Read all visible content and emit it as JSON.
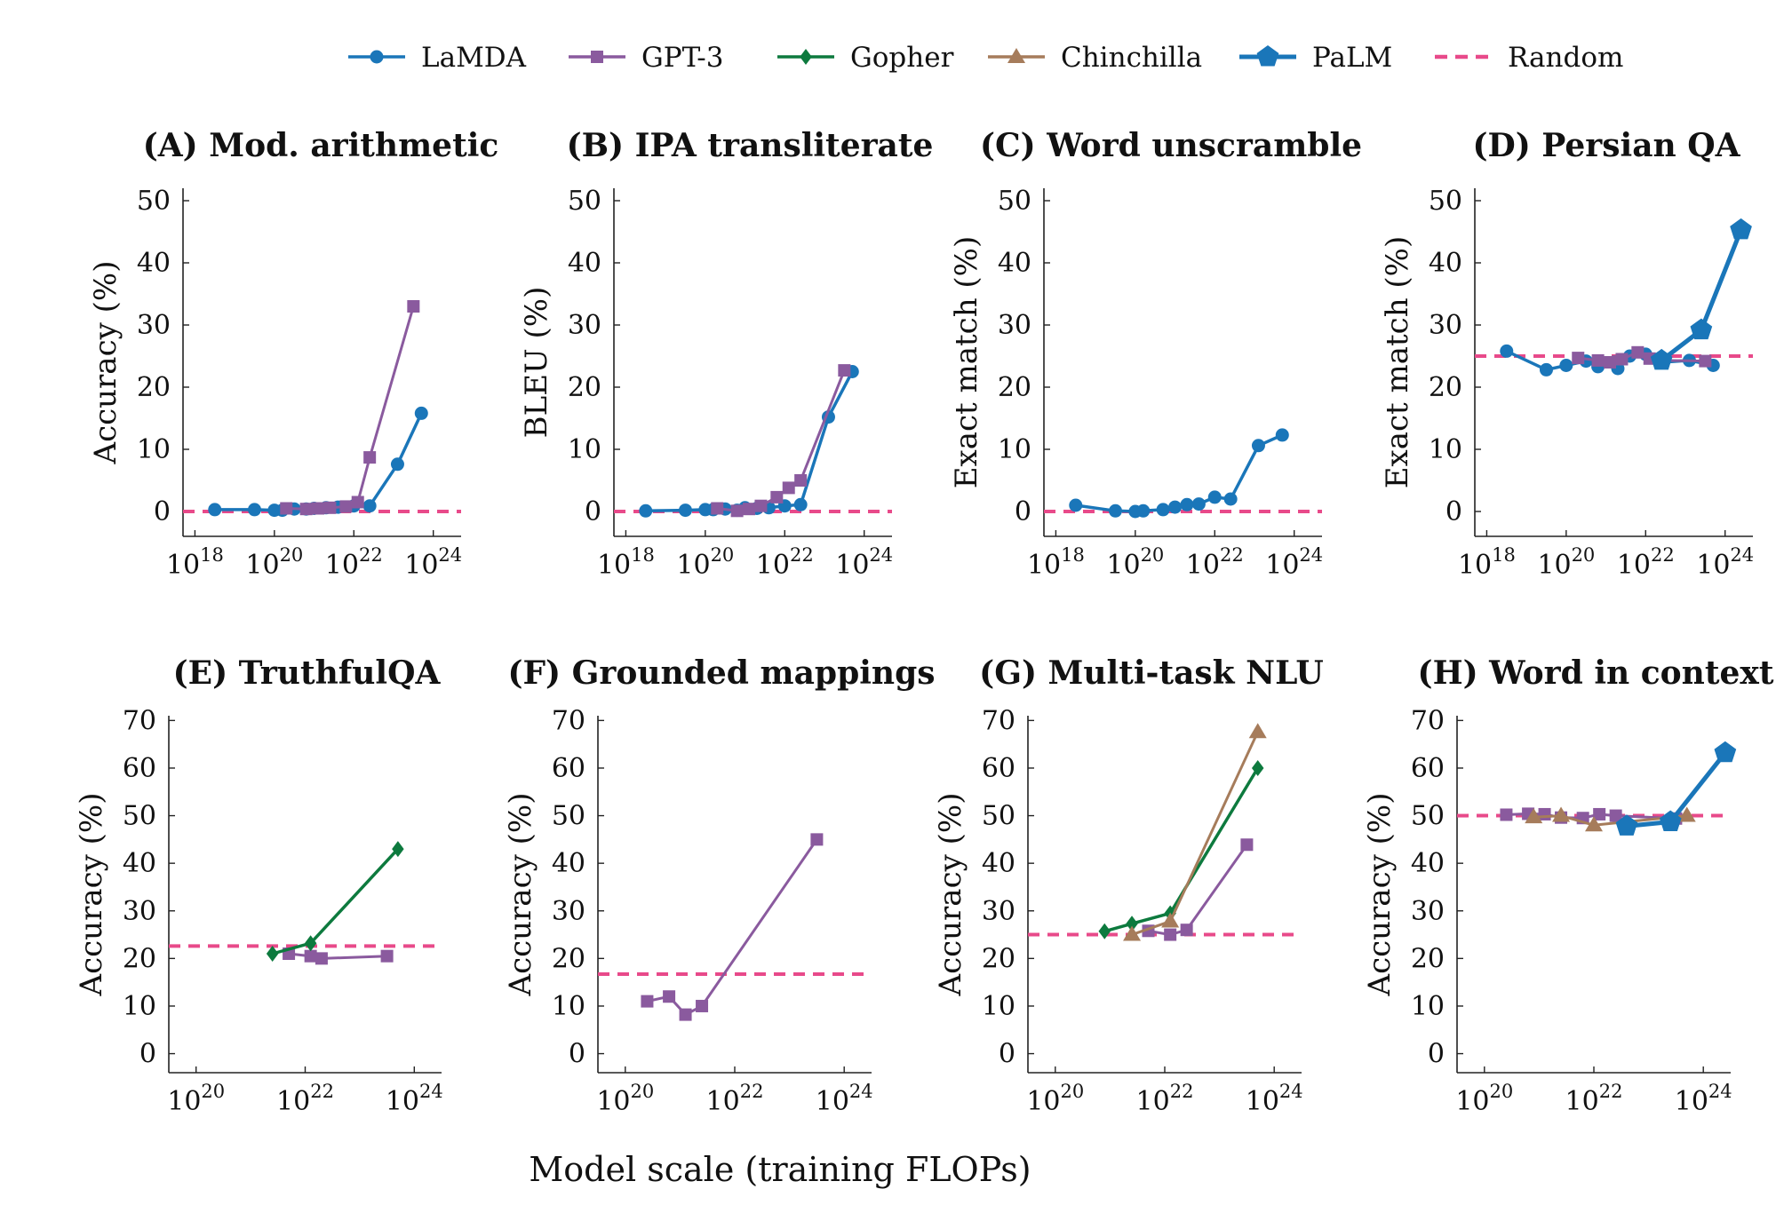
{
  "xlabel": "Model scale (training FLOPs)",
  "series_styles": [
    {
      "name": "LaMDA",
      "color": "#1a76b9",
      "marker": "circle"
    },
    {
      "name": "GPT-3",
      "color": "#8a5a9e",
      "marker": "square"
    },
    {
      "name": "Gopher",
      "color": "#0d7a3e",
      "marker": "diamond"
    },
    {
      "name": "Chinchilla",
      "color": "#a67c5b",
      "marker": "triangle"
    },
    {
      "name": "PaLM",
      "color": "#1a76b9",
      "marker": "pentagon"
    },
    {
      "name": "Random",
      "color": "#e84a8a",
      "marker": "dashed"
    }
  ],
  "chart_data": [
    {
      "type": "line",
      "title": "(A) Mod. arithmetic",
      "ylabel": "Accuracy (%)",
      "x_scale": "log",
      "xlim": [
        "1e17.7",
        "1e24.7"
      ],
      "x_ticks": [
        "1e18",
        "1e20",
        "1e22",
        "1e24"
      ],
      "ylim": [
        -4,
        52
      ],
      "y_ticks": [
        0,
        10,
        20,
        30,
        40,
        50
      ],
      "random": 0,
      "series": [
        {
          "name": "LaMDA",
          "x": [
            "1e18.5",
            "1e19.5",
            "1e20",
            "1e20.2",
            "1e20.5",
            "1e20.8",
            "1e21",
            "1e21.3",
            "1e21.6",
            "1e22",
            "1e22.4",
            "1e23.1",
            "1e23.7"
          ],
          "y": [
            0.3,
            0.3,
            0.2,
            0.2,
            0.4,
            0.4,
            0.5,
            0.6,
            0.7,
            0.9,
            0.9,
            7.6,
            15.8
          ]
        },
        {
          "name": "GPT-3",
          "x": [
            "1e20.3",
            "1e20.8",
            "1e21.1",
            "1e21.4",
            "1e21.8",
            "1e22.1",
            "1e22.4",
            "1e23.5"
          ],
          "y": [
            0.5,
            0.4,
            0.5,
            0.6,
            0.8,
            1.5,
            8.7,
            33
          ]
        }
      ]
    },
    {
      "type": "line",
      "title": "(B) IPA transliterate",
      "ylabel": "BLEU (%)",
      "x_scale": "log",
      "xlim": [
        "1e17.7",
        "1e24.7"
      ],
      "x_ticks": [
        "1e18",
        "1e20",
        "1e22",
        "1e24"
      ],
      "ylim": [
        -4,
        52
      ],
      "y_ticks": [
        0,
        10,
        20,
        30,
        40,
        50
      ],
      "random": 0,
      "series": [
        {
          "name": "LaMDA",
          "x": [
            "1e18.5",
            "1e19.5",
            "1e20",
            "1e20.2",
            "1e20.5",
            "1e20.8",
            "1e21",
            "1e21.3",
            "1e21.6",
            "1e22",
            "1e22.4",
            "1e23.1",
            "1e23.7"
          ],
          "y": [
            0.1,
            0.2,
            0.3,
            0.3,
            0.4,
            0.2,
            0.6,
            0.5,
            0.6,
            0.9,
            1.1,
            15.2,
            22.5
          ]
        },
        {
          "name": "GPT-3",
          "x": [
            "1e20.3",
            "1e20.8",
            "1e21.1",
            "1e21.4",
            "1e21.8",
            "1e22.1",
            "1e22.4",
            "1e23.5"
          ],
          "y": [
            0.5,
            0.1,
            0.4,
            0.9,
            2.3,
            3.8,
            5.0,
            22.7
          ]
        }
      ]
    },
    {
      "type": "line",
      "title": "(C) Word unscramble",
      "ylabel": "Exact match (%)",
      "x_scale": "log",
      "xlim": [
        "1e17.7",
        "1e24.7"
      ],
      "x_ticks": [
        "1e18",
        "1e20",
        "1e22",
        "1e24"
      ],
      "ylim": [
        -4,
        52
      ],
      "y_ticks": [
        0,
        10,
        20,
        30,
        40,
        50
      ],
      "random": 0,
      "series": [
        {
          "name": "LaMDA",
          "x": [
            "1e18.5",
            "1e19.5",
            "1e20",
            "1e20.2",
            "1e20.7",
            "1e21",
            "1e21.3",
            "1e21.6",
            "1e22",
            "1e22.4",
            "1e23.1",
            "1e23.7"
          ],
          "y": [
            1.0,
            0.1,
            0.0,
            0.1,
            0.3,
            0.7,
            1.1,
            1.2,
            2.3,
            2.0,
            10.6,
            12.3
          ]
        }
      ]
    },
    {
      "type": "line",
      "title": "(D) Persian QA",
      "ylabel": "Exact match (%)",
      "x_scale": "log",
      "xlim": [
        "1e17.7",
        "1e24.7"
      ],
      "x_ticks": [
        "1e18",
        "1e20",
        "1e22",
        "1e24"
      ],
      "ylim": [
        -4,
        52
      ],
      "y_ticks": [
        0,
        10,
        20,
        30,
        40,
        50
      ],
      "random": 25,
      "series": [
        {
          "name": "LaMDA",
          "x": [
            "1e18.5",
            "1e19.5",
            "1e20",
            "1e20.5",
            "1e20.8",
            "1e21.2",
            "1e21.3",
            "1e21.6",
            "1e22",
            "1e22.4",
            "1e23.1",
            "1e23.7"
          ],
          "y": [
            25.8,
            22.8,
            23.5,
            24.2,
            23.3,
            24.0,
            23.0,
            25.0,
            25.3,
            24.0,
            24.3,
            23.5
          ]
        },
        {
          "name": "GPT-3",
          "x": [
            "1e20.3",
            "1e20.8",
            "1e21.1",
            "1e21.4",
            "1e21.8",
            "1e22.1",
            "1e22.4",
            "1e23.5"
          ],
          "y": [
            24.7,
            24.3,
            24.0,
            24.5,
            25.6,
            24.6,
            24.3,
            24.2
          ]
        },
        {
          "name": "PaLM",
          "x": [
            "1e22.4",
            "1e23.4",
            "1e24.4"
          ],
          "y": [
            24.3,
            29.2,
            45.3
          ]
        }
      ]
    },
    {
      "type": "line",
      "title": "(E) TruthfulQA",
      "ylabel": "Accuracy (%)",
      "x_scale": "log",
      "xlim": [
        "1e19.5",
        "1e24.5"
      ],
      "x_ticks": [
        "1e20",
        "1e22",
        "1e24"
      ],
      "ylim": [
        -4,
        71
      ],
      "y_ticks": [
        0,
        10,
        20,
        30,
        40,
        50,
        60,
        70
      ],
      "random": 22.6,
      "series": [
        {
          "name": "GPT-3",
          "x": [
            "1e21.7",
            "1e22.1",
            "1e22.3",
            "1e23.5"
          ],
          "y": [
            21.0,
            20.5,
            20.0,
            20.5
          ]
        },
        {
          "name": "Gopher",
          "x": [
            "1e21.4",
            "1e22.1",
            "1e23.7"
          ],
          "y": [
            21.0,
            23.2,
            43.0
          ]
        }
      ]
    },
    {
      "type": "line",
      "title": "(F) Grounded mappings",
      "ylabel": "Accuracy (%)",
      "x_scale": "log",
      "xlim": [
        "1e19.5",
        "1e24.5"
      ],
      "x_ticks": [
        "1e20",
        "1e22",
        "1e24"
      ],
      "ylim": [
        -4,
        71
      ],
      "y_ticks": [
        0,
        10,
        20,
        30,
        40,
        50,
        60,
        70
      ],
      "random": 16.7,
      "series": [
        {
          "name": "GPT-3",
          "x": [
            "1e20.4",
            "1e20.8",
            "1e21.1",
            "1e21.4",
            "1e23.5"
          ],
          "y": [
            11.0,
            12.0,
            8.2,
            10.0,
            45.0
          ]
        }
      ]
    },
    {
      "type": "line",
      "title": "(G) Multi-task NLU",
      "ylabel": "Accuracy (%)",
      "x_scale": "log",
      "xlim": [
        "1e19.5",
        "1e24.5"
      ],
      "x_ticks": [
        "1e20",
        "1e22",
        "1e24"
      ],
      "ylim": [
        -4,
        71
      ],
      "y_ticks": [
        0,
        10,
        20,
        30,
        40,
        50,
        60,
        70
      ],
      "random": 25,
      "series": [
        {
          "name": "GPT-3",
          "x": [
            "1e21.7",
            "1e22.1",
            "1e22.4",
            "1e23.5"
          ],
          "y": [
            25.8,
            25.0,
            26.0,
            43.9
          ]
        },
        {
          "name": "Gopher",
          "x": [
            "1e20.9",
            "1e21.4",
            "1e22.1",
            "1e23.7"
          ],
          "y": [
            25.7,
            27.3,
            29.5,
            60.0
          ]
        },
        {
          "name": "Chinchilla",
          "x": [
            "1e21.4",
            "1e22.1",
            "1e23.7"
          ],
          "y": [
            25.0,
            27.8,
            67.6
          ]
        }
      ]
    },
    {
      "type": "line",
      "title": "(H) Word in context",
      "ylabel": "Accuracy (%)",
      "x_scale": "log",
      "xlim": [
        "1e19.5",
        "1e24.5"
      ],
      "x_ticks": [
        "1e20",
        "1e22",
        "1e24"
      ],
      "ylim": [
        -4,
        71
      ],
      "y_ticks": [
        0,
        10,
        20,
        30,
        40,
        50,
        60,
        70
      ],
      "random": 50,
      "series": [
        {
          "name": "GPT-3",
          "x": [
            "1e20.4",
            "1e20.8",
            "1e21.1",
            "1e21.4",
            "1e21.8",
            "1e22.1",
            "1e22.4",
            "1e23.5"
          ],
          "y": [
            50.2,
            50.4,
            50.3,
            49.6,
            49.5,
            50.3,
            50.0,
            49.4
          ]
        },
        {
          "name": "Chinchilla",
          "x": [
            "1e20.9",
            "1e21.4",
            "1e22",
            "1e23.7"
          ],
          "y": [
            49.7,
            50.0,
            48.0,
            50.0
          ]
        },
        {
          "name": "PaLM",
          "x": [
            "1e22.6",
            "1e23.4",
            "1e24.4"
          ],
          "y": [
            47.8,
            48.7,
            63.2
          ]
        }
      ]
    }
  ]
}
